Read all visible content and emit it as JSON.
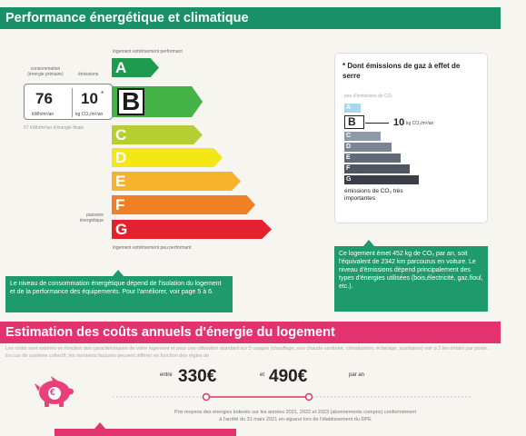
{
  "section1": {
    "title": "Performance énergétique et climatique",
    "scale_top": "logement extrêmement performant",
    "scale_bottom": "logement extrêmement peu performant",
    "col_consumption": "consommation (énergie primaire)",
    "col_emissions": "émissions",
    "consumption_value": "76",
    "consumption_unit": "kWh/m²/an",
    "emissions_value": "10",
    "emissions_marker": "*",
    "emissions_unit": "kg CO₂/m²/an",
    "final_energy_note": "57 kWh/m²/an d'énergie finale",
    "passoire_label": "passoire énergétique",
    "rating": "B",
    "classes": [
      "A",
      "B",
      "C",
      "D",
      "E",
      "F",
      "G"
    ],
    "class_colors": [
      "#1e9b4f",
      "#45b347",
      "#b5cf32",
      "#f3e716",
      "#f7b32d",
      "#ef8026",
      "#e3222d"
    ],
    "info_text": "Le niveau de consommation énergétique dépend de l'isolation du logement  et de la performance des équipements. Pour l'améliorer, voir page 5 à 6.",
    "ges_card": {
      "title": "* Dont émissions de gaz à effet de serre",
      "top_label": "peu d'émissions de CO₂",
      "bottom_label": "émissions de CO₂ très importantes",
      "value": "10",
      "unit": "kg CO₂/m²/an",
      "rating": "B",
      "classes": [
        "A",
        "B",
        "C",
        "D",
        "E",
        "F",
        "G"
      ],
      "class_colors": [
        "#a7d8ef",
        "#9fb0c4",
        "#8e9aa9",
        "#7a8493",
        "#636a77",
        "#4f5561",
        "#3a3e47"
      ]
    },
    "ges_info_text": "Ce logement émet 452 kg de CO₂ par an, soit l'équivalent de 2342 km parcourus en voiture. Le niveau d'émissions dépend principalement des types d'énergies utilisées (bois,électricité, gaz,fioul, etc.)."
  },
  "section2": {
    "title": "Estimation des coûts annuels d'énergie du logement",
    "intro": "Les coûts sont estimés en fonction des caractéristiques de votre logement et pour une utilisation standard sur 5 usages (chauffage, eau chaude sanitaire, climatisation, éclairage, auxiliaires) voir p.3 les détails par poste. . En cas de système collectif, les montants facturés peuvent différer en fonction des règles de",
    "between_label": "entre",
    "min_cost": "330€",
    "and_label": "et",
    "max_cost": "490€",
    "per_year": "par an",
    "prices_note_line1": "Prix moyens des énergies indexés sur les années 2021, 2022 et 2023 (abonnements compris) conformément",
    "prices_note_line2": "à l'arrêté du 31 mars 2021 en vigueur lors de l'établissement du DPE",
    "currency_icon": "euro"
  }
}
